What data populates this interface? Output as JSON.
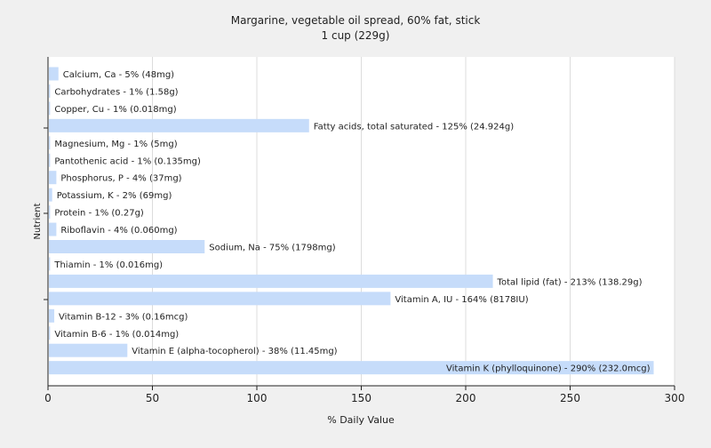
{
  "chart_data": {
    "type": "bar",
    "orientation": "horizontal",
    "title": "Margarine, vegetable oil spread, 60% fat, stick",
    "subtitle": "1 cup (229g)",
    "xlabel": "% Daily Value",
    "ylabel": "Nutrient",
    "xlim": [
      0,
      300
    ],
    "xticks": [
      0,
      50,
      100,
      150,
      200,
      250,
      300
    ],
    "grid": true,
    "legend": "none",
    "bar_color": "#c6dcfa",
    "categories": [
      "Calcium, Ca",
      "Carbohydrates",
      "Copper, Cu",
      "Fatty acids, total saturated",
      "Magnesium, Mg",
      "Pantothenic acid",
      "Phosphorus, P",
      "Potassium, K",
      "Protein",
      "Riboflavin",
      "Sodium, Na",
      "Thiamin",
      "Total lipid (fat)",
      "Vitamin A, IU",
      "Vitamin B-12",
      "Vitamin B-6",
      "Vitamin E (alpha-tocopherol)",
      "Vitamin K (phylloquinone)"
    ],
    "values": [
      5,
      1,
      1,
      125,
      1,
      1,
      4,
      2,
      1,
      4,
      75,
      1,
      213,
      164,
      3,
      1,
      38,
      290
    ],
    "labels": [
      "Calcium, Ca - 5% (48mg)",
      "Carbohydrates - 1% (1.58g)",
      "Copper, Cu - 1% (0.018mg)",
      "Fatty acids, total saturated - 125% (24.924g)",
      "Magnesium, Mg - 1% (5mg)",
      "Pantothenic acid - 1% (0.135mg)",
      "Phosphorus, P - 4% (37mg)",
      "Potassium, K - 2% (69mg)",
      "Protein - 1% (0.27g)",
      "Riboflavin - 4% (0.060mg)",
      "Sodium, Na - 75% (1798mg)",
      "Thiamin - 1% (0.016mg)",
      "Total lipid (fat) - 213% (138.29g)",
      "Vitamin A, IU - 164% (8178IU)",
      "Vitamin B-12 - 3% (0.16mcg)",
      "Vitamin B-6 - 1% (0.014mg)",
      "Vitamin E (alpha-tocopherol) - 38% (11.45mg)",
      "Vitamin K (phylloquinone) - 290% (232.0mcg)"
    ]
  }
}
